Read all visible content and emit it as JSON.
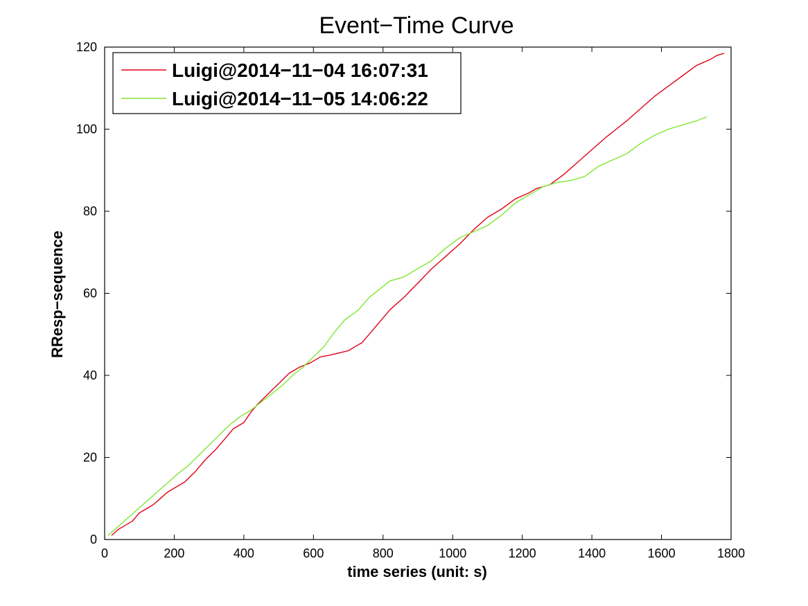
{
  "chart_data": {
    "type": "line",
    "title": "Event−Time Curve",
    "xlabel": "time series (unit: s)",
    "ylabel": "RResp−sequence",
    "xlim": [
      0,
      1800
    ],
    "ylim": [
      0,
      120
    ],
    "xticks": [
      0,
      200,
      400,
      600,
      800,
      1000,
      1200,
      1400,
      1600,
      1800
    ],
    "yticks": [
      0,
      20,
      40,
      60,
      80,
      100,
      120
    ],
    "legend_position": "top-left",
    "grid": false,
    "series": [
      {
        "name": "Luigi@2014−11−04 16:07:31",
        "color": "#e0001a",
        "x": [
          20,
          40,
          60,
          80,
          100,
          120,
          140,
          160,
          180,
          200,
          230,
          260,
          290,
          320,
          350,
          370,
          400,
          420,
          440,
          470,
          500,
          530,
          560,
          590,
          620,
          650,
          700,
          740,
          780,
          820,
          860,
          900,
          940,
          980,
          1020,
          1060,
          1100,
          1140,
          1180,
          1220,
          1240,
          1280,
          1320,
          1360,
          1400,
          1440,
          1470,
          1500,
          1540,
          1580,
          1620,
          1660,
          1700,
          1740,
          1760,
          1780
        ],
        "y": [
          1,
          2.5,
          3.5,
          4.5,
          6.5,
          7.5,
          8.5,
          10,
          11.5,
          12.5,
          14,
          16.5,
          19.5,
          22,
          25,
          27,
          28.5,
          31,
          33,
          35.5,
          38,
          40.5,
          42,
          43,
          44.5,
          45,
          46,
          48,
          52,
          56,
          59,
          62.5,
          66,
          69,
          72,
          75.5,
          78.5,
          80.5,
          83,
          84.5,
          85.5,
          86.5,
          89,
          92,
          95,
          98,
          100,
          102,
          105,
          108,
          110.5,
          113,
          115.5,
          117,
          118,
          118.5
        ]
      },
      {
        "name": "Luigi@2014−11−05 14:06:22",
        "color": "#80e632",
        "x": [
          10,
          30,
          50,
          70,
          90,
          110,
          130,
          150,
          170,
          190,
          210,
          240,
          270,
          300,
          330,
          360,
          390,
          420,
          450,
          480,
          510,
          540,
          570,
          600,
          630,
          660,
          690,
          730,
          760,
          790,
          820,
          860,
          900,
          940,
          980,
          1020,
          1060,
          1100,
          1140,
          1180,
          1220,
          1260,
          1300,
          1340,
          1380,
          1420,
          1460,
          1500,
          1540,
          1580,
          1620,
          1660,
          1700,
          1730
        ],
        "y": [
          1,
          2.5,
          4,
          5.5,
          7,
          8.5,
          10,
          11.5,
          13,
          14.5,
          16,
          18,
          20.5,
          23,
          25.5,
          28,
          30,
          31.5,
          33.5,
          35.5,
          37.5,
          40,
          42,
          44.5,
          47,
          50.5,
          53.5,
          56,
          59,
          61,
          63,
          64,
          66,
          68,
          71,
          73.5,
          75,
          76.5,
          79,
          82,
          84,
          86,
          87,
          87.5,
          88.5,
          91,
          92.5,
          94,
          96.5,
          98.5,
          100,
          101,
          102,
          103
        ]
      }
    ]
  }
}
